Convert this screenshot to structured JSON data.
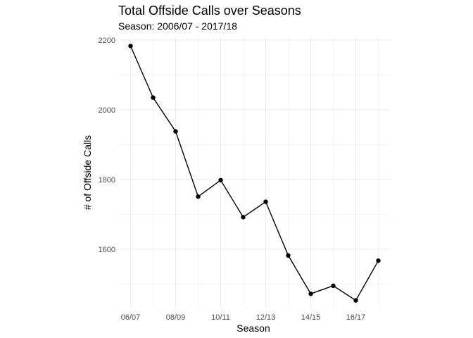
{
  "chart_data": {
    "type": "line",
    "title": "Total Offside Calls over Seasons",
    "subtitle": "Season: 2006/07 - 2017/18",
    "xlabel": "Season",
    "ylabel": "# of Offside Calls",
    "x_tick_labels": [
      "06/07",
      "08/09",
      "10/11",
      "12/13",
      "14/15",
      "16/17"
    ],
    "y_ticks": [
      1600,
      1800,
      2000,
      2200
    ],
    "ylim": [
      1430,
      2210
    ],
    "grid": true,
    "series": [
      {
        "values": [
          2183,
          2035,
          1938,
          1751,
          1798,
          1692,
          1736,
          1582,
          1472,
          1495,
          1453,
          1567
        ]
      }
    ],
    "colors": {
      "line": "#000000",
      "grid": "#ebebeb"
    }
  }
}
